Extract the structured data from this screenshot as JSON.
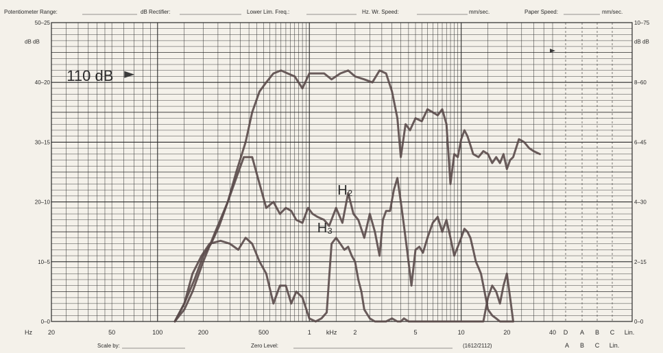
{
  "header": {
    "potentiometer_range": "Potentiometer Range:",
    "db_rectifier": "dB Rectifier:",
    "lower_lim_freq": "Lower Lim. Freq.:",
    "wr_speed": "Hz. Wr. Speed:",
    "wr_speed_unit": "mm/sec.",
    "paper_speed": "Paper Speed:",
    "paper_speed_unit": "mm/sec."
  },
  "footer": {
    "scale_by": "Scale by:",
    "zero_level": "Zero Level:",
    "code": "(1612/2112)"
  },
  "colors": {
    "paper": "#f4f1ea",
    "grid": "#1f1f1f",
    "trace": "#5a4a4a"
  },
  "chart_data": {
    "type": "line",
    "xscale": "log",
    "xlim": [
      20,
      40000
    ],
    "ylim": [
      0,
      50
    ],
    "xticks": [
      {
        "v": 20,
        "t": "20"
      },
      {
        "v": 50,
        "t": "50"
      },
      {
        "v": 100,
        "t": "100"
      },
      {
        "v": 200,
        "t": "200"
      },
      {
        "v": 500,
        "t": "500"
      },
      {
        "v": 1000,
        "t": "1"
      },
      {
        "v": 1400,
        "t": "kHz"
      },
      {
        "v": 2000,
        "t": "2"
      },
      {
        "v": 5000,
        "t": "5"
      },
      {
        "v": 10000,
        "t": "10"
      },
      {
        "v": 20000,
        "t": "20"
      },
      {
        "v": 40000,
        "t": "40"
      }
    ],
    "x_unit_label": "Hz",
    "yticks_left": [
      {
        "v": 50,
        "t": "50–25"
      },
      {
        "v": 40,
        "t": "40–20"
      },
      {
        "v": 30,
        "t": "30–15"
      },
      {
        "v": 20,
        "t": "20–10"
      },
      {
        "v": 10,
        "t": "10–5"
      },
      {
        "v": 0,
        "t": "0–0"
      }
    ],
    "y_unit_left": "dB dB",
    "yticks_right": [
      {
        "v": 50,
        "t": "10–75"
      },
      {
        "v": 40,
        "t": "8–60"
      },
      {
        "v": 30,
        "t": "6–45"
      },
      {
        "v": 20,
        "t": "4–30"
      },
      {
        "v": 10,
        "t": "2–15"
      },
      {
        "v": 0,
        "t": "0–0"
      }
    ],
    "y_unit_right": "dB dB",
    "weighting_labels_top": [
      "D",
      "A",
      "B",
      "C",
      "Lin."
    ],
    "weighting_labels_bottom": [
      "A",
      "B",
      "C",
      "Lin."
    ],
    "annotations": [
      {
        "text": "110 dB",
        "x": 55,
        "y": 42
      },
      {
        "text": "H₂",
        "x": 1700,
        "y": 21.8
      },
      {
        "text": "H₃",
        "x": 1250,
        "y": 15.5
      }
    ],
    "series": [
      {
        "x": [
          130,
          150,
          170,
          200,
          240,
          290,
          330,
          380,
          420,
          470,
          520,
          580,
          650,
          720,
          800,
          900,
          1000,
          1100,
          1250,
          1400,
          1600,
          1800,
          2000,
          2300,
          2600,
          2900,
          3200,
          3500,
          3800,
          4000,
          4300,
          4600,
          5000,
          5500,
          6000,
          6500,
          7000,
          7500,
          8000,
          8500,
          9000,
          9500,
          10000,
          10500,
          11000,
          11500,
          12000,
          13000,
          14000,
          15000,
          16000,
          17000,
          18000,
          19000,
          20000,
          21000,
          22000,
          24000,
          26000,
          28000,
          30000,
          33000
        ],
        "y": [
          0,
          2,
          5,
          10,
          15,
          20,
          25,
          30,
          35,
          38.5,
          40,
          41.5,
          42,
          41.5,
          41,
          39,
          41.5,
          41.5,
          41.5,
          40.5,
          41.5,
          42,
          41,
          40.5,
          40,
          42,
          41.5,
          38.5,
          34,
          27.5,
          33,
          32,
          34,
          33.5,
          35.5,
          35,
          34.5,
          35.5,
          33,
          23,
          28,
          27.5,
          30.5,
          32,
          31,
          29.5,
          28,
          27.5,
          28.5,
          28,
          26.5,
          27.5,
          26.5,
          28,
          25.5,
          27,
          27.5,
          30.5,
          30,
          29,
          28.5,
          28
        ]
      },
      {
        "x": [
          130,
          150,
          175,
          200,
          225,
          255,
          290,
          330,
          370,
          420,
          470,
          520,
          580,
          640,
          700,
          760,
          820,
          900,
          980,
          1050,
          1130,
          1250,
          1350,
          1500,
          1650,
          1800,
          1950,
          2100,
          2300,
          2500,
          2700,
          2900,
          3050,
          3200,
          3400,
          3600,
          3800,
          4000,
          4200,
          4400,
          4700,
          5000,
          5300,
          5600,
          6000,
          6500,
          7000,
          7500,
          8000,
          8500,
          9000,
          9500,
          10000,
          10500,
          11000,
          11500,
          12000,
          12500,
          13000,
          13500,
          14000,
          14500,
          15000,
          16000,
          17000,
          18000,
          19000,
          20000,
          21000,
          22000
        ],
        "y": [
          0,
          3,
          7,
          11,
          13,
          16,
          20,
          24,
          27.5,
          27.5,
          23,
          19,
          20,
          18,
          19,
          18.5,
          17,
          16.5,
          19,
          18,
          17.5,
          17,
          16,
          19,
          16.5,
          21.5,
          18,
          17,
          14,
          18,
          15,
          11,
          17,
          18.5,
          18.5,
          22,
          24,
          20,
          16,
          12,
          6,
          12,
          12.5,
          11.5,
          14,
          16.5,
          17.5,
          15,
          17,
          14,
          11,
          12.5,
          14,
          15.5,
          15,
          14,
          12,
          10,
          9,
          8,
          6,
          4,
          2,
          1,
          0.5,
          0,
          0,
          0,
          0,
          0
        ]
      },
      {
        "x": [
          130,
          150,
          170,
          195,
          220,
          260,
          300,
          340,
          380,
          420,
          470,
          520,
          580,
          640,
          700,
          760,
          820,
          900,
          1000,
          1100,
          1200,
          1300,
          1400,
          1500,
          1600,
          1700,
          1800,
          1900,
          2000,
          2100,
          2200,
          2300,
          2500,
          2700,
          2900,
          3200,
          3500,
          3800,
          4000,
          4200,
          4500,
          5000,
          5500,
          6000,
          7000,
          8000,
          9000,
          10000,
          11000,
          12000,
          13000,
          14000,
          15000,
          16000,
          17000,
          18000,
          19000,
          20000,
          21000,
          22000
        ],
        "y": [
          0,
          3,
          8,
          11,
          13,
          13.5,
          13,
          12,
          14,
          13,
          10,
          8,
          3,
          6,
          6,
          3,
          5,
          4,
          0.5,
          0,
          0.5,
          1.5,
          13,
          14,
          13,
          12,
          12.5,
          11,
          10,
          7,
          5,
          2,
          0.5,
          0,
          0,
          0,
          0.5,
          0,
          0,
          0.5,
          0,
          0,
          0,
          0,
          0,
          0,
          0,
          0,
          0,
          0,
          0,
          0,
          4,
          6,
          5,
          3,
          6,
          8,
          4,
          0
        ]
      }
    ]
  }
}
